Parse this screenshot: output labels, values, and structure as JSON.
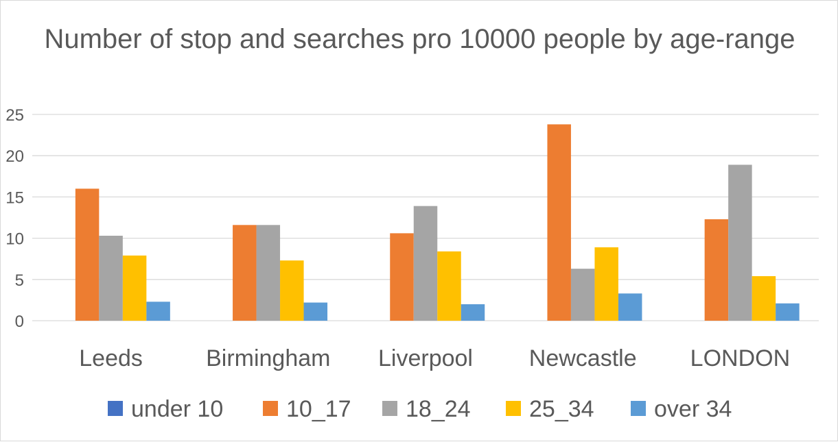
{
  "chart_data": {
    "type": "bar",
    "title": "Number of stop and searches pro 10000 people by age-range",
    "xlabel": "",
    "ylabel": "",
    "ylim": [
      0,
      25
    ],
    "yticks": [
      0,
      5,
      10,
      15,
      20,
      25
    ],
    "grid": true,
    "legend": "bottom",
    "categories": [
      "Leeds",
      "Birmingham",
      "Liverpool",
      "Newcastle",
      "LONDON"
    ],
    "series": [
      {
        "name": "under 10",
        "color": "#4472c4",
        "values": [
          0,
          0,
          0,
          0,
          0
        ]
      },
      {
        "name": "10_17",
        "color": "#ed7d31",
        "values": [
          16.0,
          11.6,
          10.6,
          23.8,
          12.3
        ]
      },
      {
        "name": "18_24",
        "color": "#a5a5a5",
        "values": [
          10.3,
          11.6,
          13.9,
          6.3,
          18.9
        ]
      },
      {
        "name": "25_34",
        "color": "#ffc000",
        "values": [
          7.9,
          7.3,
          8.4,
          8.9,
          5.4
        ]
      },
      {
        "name": "over 34",
        "color": "#5b9bd5",
        "values": [
          2.3,
          2.2,
          2.0,
          3.3,
          2.1
        ]
      }
    ]
  }
}
